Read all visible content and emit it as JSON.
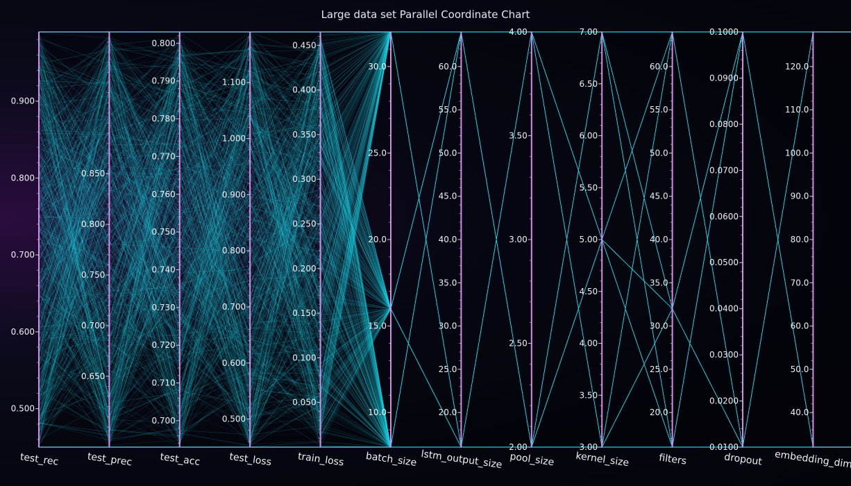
{
  "chart_data": {
    "type": "parallel-coordinates",
    "title": "Large data set Parallel Coordinate Chart",
    "line_color": "#1fd6e8",
    "axis_color": "#d98ae8",
    "axes": [
      {
        "name": "test_rec",
        "range": [
          0.45,
          0.99
        ],
        "ticks": [
          0.5,
          0.6,
          0.7,
          0.8,
          0.9
        ],
        "tick_labels": [
          "0.500",
          "0.600",
          "0.700",
          "0.800",
          "0.900"
        ]
      },
      {
        "name": "test_prec",
        "range": [
          0.58,
          0.99
        ],
        "ticks": [
          0.65,
          0.7,
          0.75,
          0.8,
          0.85
        ],
        "tick_labels": [
          "0.650",
          "0.700",
          "0.750",
          "0.800",
          "0.850"
        ]
      },
      {
        "name": "test_acc",
        "range": [
          0.693,
          0.803
        ],
        "ticks": [
          0.7,
          0.71,
          0.72,
          0.73,
          0.74,
          0.75,
          0.76,
          0.77,
          0.78,
          0.79,
          0.8
        ],
        "tick_labels": [
          "0.700",
          "0.710",
          "0.720",
          "0.730",
          "0.740",
          "0.750",
          "0.760",
          "0.770",
          "0.780",
          "0.790",
          "0.800"
        ]
      },
      {
        "name": "test_loss",
        "range": [
          0.45,
          1.19
        ],
        "ticks": [
          0.5,
          0.6,
          0.7,
          0.8,
          0.9,
          1.0,
          1.1
        ],
        "tick_labels": [
          "0.500",
          "0.600",
          "0.700",
          "0.800",
          "0.900",
          "1.000",
          "1.100"
        ]
      },
      {
        "name": "train_loss",
        "range": [
          0.0,
          0.465
        ],
        "ticks": [
          0.05,
          0.1,
          0.15,
          0.2,
          0.25,
          0.3,
          0.35,
          0.4,
          0.45
        ],
        "tick_labels": [
          "0.050",
          "0.100",
          "0.150",
          "0.200",
          "0.250",
          "0.300",
          "0.350",
          "0.400",
          "0.450"
        ]
      },
      {
        "name": "batch_size",
        "range": [
          8,
          32
        ],
        "ticks": [
          10,
          15,
          20,
          25,
          30
        ],
        "tick_labels": [
          "10.0",
          "15.0",
          "20.0",
          "25.0",
          "30.0"
        ]
      },
      {
        "name": "lstm_output_size",
        "range": [
          16,
          64
        ],
        "ticks": [
          20,
          25,
          30,
          35,
          40,
          45,
          50,
          55,
          60
        ],
        "tick_labels": [
          "20.0",
          "25.0",
          "30.0",
          "35.0",
          "40.0",
          "45.0",
          "50.0",
          "55.0",
          "60.0"
        ]
      },
      {
        "name": "pool_size",
        "range": [
          2,
          4
        ],
        "ticks": [
          2,
          2.5,
          3,
          3.5,
          4
        ],
        "tick_labels": [
          "2.00",
          "2.50",
          "3.00",
          "3.50",
          "4.00"
        ]
      },
      {
        "name": "kernel_size",
        "range": [
          3,
          7
        ],
        "ticks": [
          3,
          3.5,
          4,
          4.5,
          5,
          5.5,
          6,
          6.5,
          7
        ],
        "tick_labels": [
          "3.00",
          "3.50",
          "4.00",
          "4.50",
          "5.00",
          "5.50",
          "6.00",
          "6.50",
          "7.00"
        ]
      },
      {
        "name": "filters",
        "range": [
          16,
          64
        ],
        "ticks": [
          20,
          25,
          30,
          35,
          40,
          45,
          50,
          55,
          60
        ],
        "tick_labels": [
          "20.0",
          "25.0",
          "30.0",
          "35.0",
          "40.0",
          "45.0",
          "50.0",
          "55.0",
          "60.0"
        ]
      },
      {
        "name": "dropout",
        "range": [
          0.01,
          0.1
        ],
        "ticks": [
          0.01,
          0.02,
          0.03,
          0.04,
          0.05,
          0.06,
          0.07,
          0.08,
          0.09,
          0.1
        ],
        "tick_labels": [
          "0.0100",
          "0.0200",
          "0.0300",
          "0.0400",
          "0.0500",
          "0.0600",
          "0.0700",
          "0.0800",
          "0.0900",
          "0.1000"
        ]
      },
      {
        "name": "embedding_dim",
        "range": [
          32,
          128
        ],
        "ticks": [
          40,
          50,
          60,
          70,
          80,
          90,
          100,
          110,
          120
        ],
        "tick_labels": [
          "40.0",
          "50.0",
          "60.0",
          "70.0",
          "80.0",
          "90.0",
          "100.0",
          "110.0",
          "120.0"
        ]
      }
    ],
    "discrete_values": {
      "batch_size": [
        8,
        16,
        32
      ],
      "lstm_output_size": [
        16,
        64
      ],
      "pool_size": [
        2,
        4
      ],
      "kernel_size": [
        3,
        5,
        7
      ],
      "filters": [
        16,
        32,
        64
      ],
      "dropout": [
        0.01,
        0.1
      ],
      "embedding_dim": [
        32,
        128
      ]
    },
    "line_count": 600
  }
}
